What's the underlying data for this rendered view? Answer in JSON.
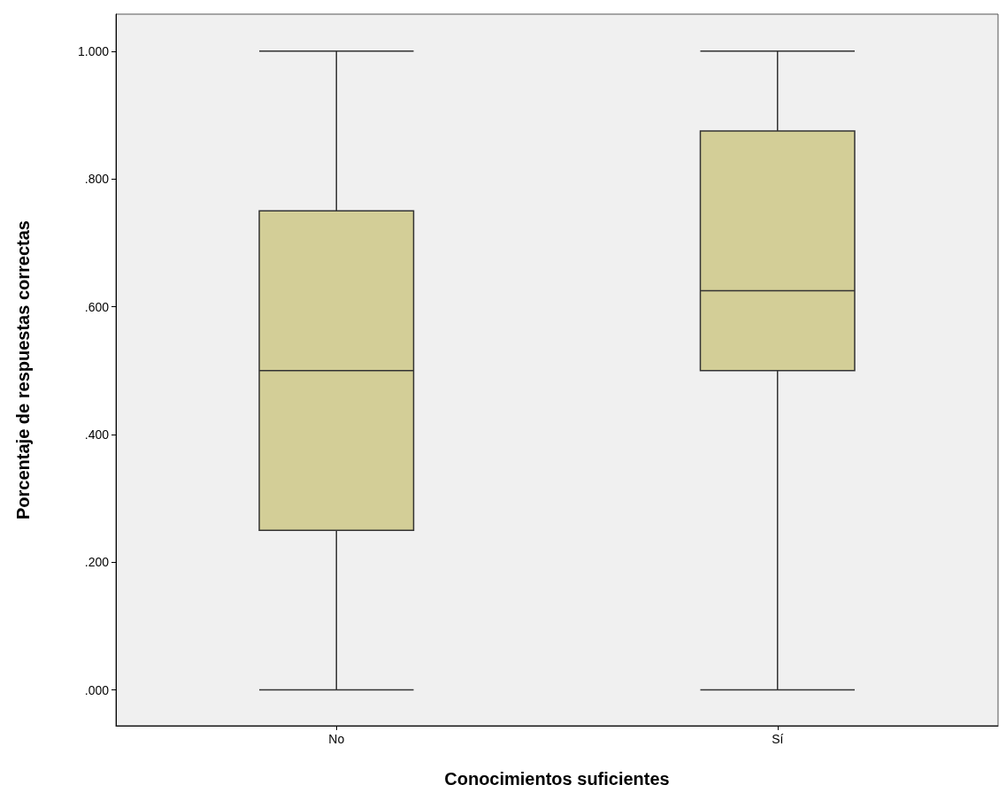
{
  "chart_data": {
    "type": "box",
    "xlabel": "Conocimientos suficientes",
    "ylabel": "Porcentaje de respuestas correctas",
    "categories": [
      "No",
      "Sí"
    ],
    "boxes": [
      {
        "low": 0,
        "q1": 0.25,
        "median": 0.5,
        "q3": 0.75,
        "high": 1
      },
      {
        "low": 0,
        "q1": 0.5,
        "median": 0.625,
        "q3": 0.875,
        "high": 1
      }
    ],
    "color": "#d3ce97",
    "ylim": [
      -0.056,
      1.058
    ],
    "yticks": [
      {
        "value": 0,
        "label": ".000"
      },
      {
        "value": 0.2,
        "label": ".200"
      },
      {
        "value": 0.4,
        "label": ".400"
      },
      {
        "value": 0.6,
        "label": ".600"
      },
      {
        "value": 0.8,
        "label": ".800"
      },
      {
        "value": 1,
        "label": "1.000"
      }
    ],
    "grid": false
  }
}
